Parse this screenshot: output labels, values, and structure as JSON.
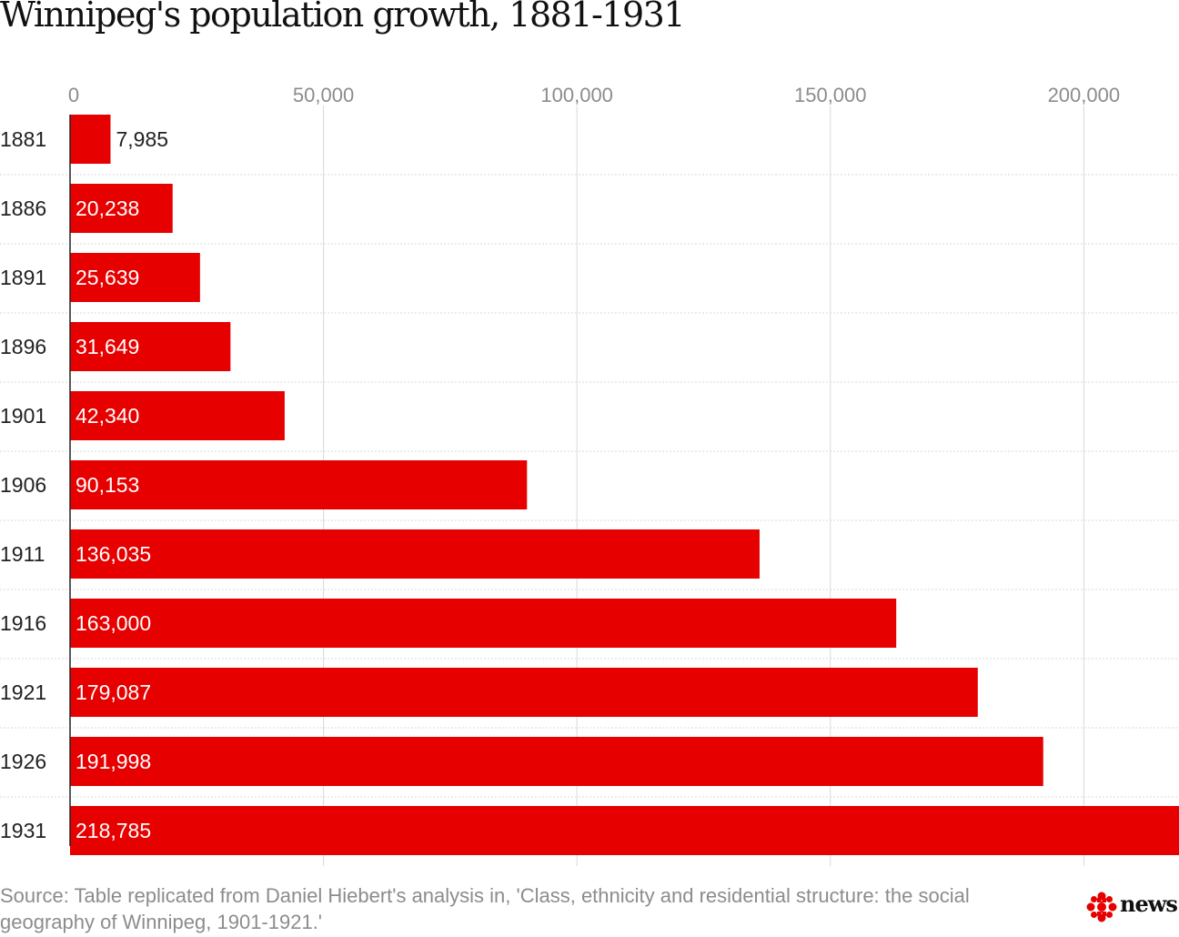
{
  "title": "Winnipeg's population growth, 1881-1931",
  "source": "Source: Table replicated from Daniel Hiebert's analysis in, 'Class, ethnicity and residential structure: the social geography of Winnipeg, 1901-1921.'",
  "logo": {
    "text": "news",
    "icon": "gem-logo-icon"
  },
  "colors": {
    "bar": "#e60000",
    "grid": "#d9d9d9",
    "axis_text": "#8c8c8c",
    "label": "#222222"
  },
  "chart_data": {
    "type": "bar",
    "orientation": "horizontal",
    "title": "Winnipeg's population growth, 1881-1931",
    "categories": [
      "1881",
      "1886",
      "1891",
      "1896",
      "1901",
      "1906",
      "1911",
      "1916",
      "1921",
      "1926",
      "1931"
    ],
    "values": [
      7985,
      20238,
      25639,
      31649,
      42340,
      90153,
      136035,
      163000,
      179087,
      191998,
      218785
    ],
    "value_labels": [
      "7,985",
      "20,238",
      "25,639",
      "31,649",
      "42,340",
      "90,153",
      "136,035",
      "163,000",
      "179,087",
      "191,998",
      "218,785"
    ],
    "xticks": [
      0,
      50000,
      100000,
      150000,
      200000
    ],
    "xtick_labels": [
      "0",
      "50,000",
      "100,000",
      "150,000",
      "200,000"
    ],
    "xlim": [
      0,
      218785
    ],
    "xaxis_position": "top",
    "grid": true,
    "legend": "none"
  }
}
